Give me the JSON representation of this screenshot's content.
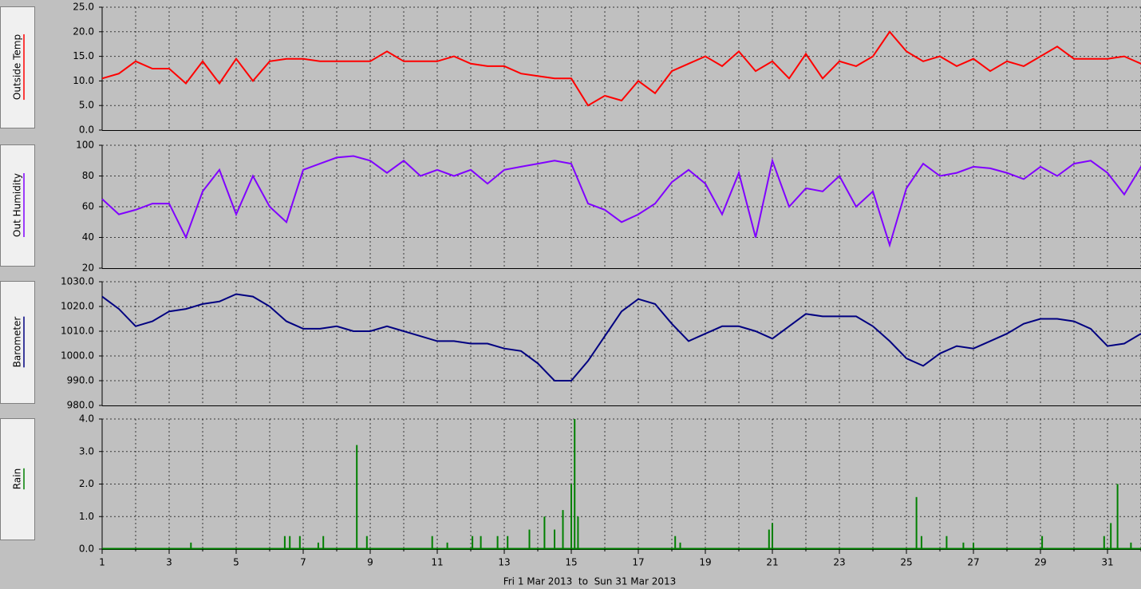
{
  "chart_data": [
    {
      "type": "line",
      "ylabel": "Outside Temp",
      "color": "#ff0000",
      "xlim": [
        1,
        32
      ],
      "ylim": [
        0,
        25
      ],
      "grid": true,
      "yticks": [
        {
          "value": 0,
          "label": "0.0"
        },
        {
          "value": 5,
          "label": "5.0"
        },
        {
          "value": 10,
          "label": "10.0"
        },
        {
          "value": 15,
          "label": "15.0"
        },
        {
          "value": 20,
          "label": "20.0"
        },
        {
          "value": 25,
          "label": "25.0"
        }
      ],
      "x": [
        1,
        1.5,
        2,
        2.5,
        3,
        3.5,
        4,
        4.5,
        5,
        5.5,
        6,
        6.5,
        7,
        7.5,
        8,
        8.5,
        9,
        9.5,
        10,
        10.5,
        11,
        11.5,
        12,
        12.5,
        13,
        13.5,
        14,
        14.5,
        15,
        15.5,
        16,
        16.5,
        17,
        17.5,
        18,
        18.5,
        19,
        19.5,
        20,
        20.5,
        21,
        21.5,
        22,
        22.5,
        23,
        23.5,
        24,
        24.5,
        25,
        25.5,
        26,
        26.5,
        27,
        27.5,
        28,
        28.5,
        29,
        29.5,
        30,
        30.5,
        31,
        31.5,
        32
      ],
      "values": [
        10.5,
        11.5,
        14,
        12.5,
        12.5,
        9.5,
        14,
        9.5,
        14.5,
        10,
        14,
        14.5,
        14.5,
        14,
        14,
        14,
        14,
        16,
        14,
        14,
        14,
        15,
        13.5,
        13,
        13,
        11.5,
        11,
        10.5,
        10.5,
        5,
        7,
        6,
        10,
        7.5,
        12,
        13.5,
        15,
        13,
        16,
        12,
        14,
        10.5,
        15.5,
        10.5,
        14,
        13,
        15,
        20,
        16,
        14,
        15,
        13,
        14.5,
        12,
        14,
        13,
        15,
        17,
        14.5,
        14.5,
        14.5,
        15,
        13.5
      ]
    },
    {
      "type": "line",
      "ylabel": "Out Humidity",
      "color": "#8000ff",
      "xlim": [
        1,
        32
      ],
      "ylim": [
        20,
        100
      ],
      "grid": true,
      "yticks": [
        20,
        40,
        60,
        80,
        100
      ],
      "x": [
        1,
        1.5,
        2,
        2.5,
        3,
        3.5,
        4,
        4.5,
        5,
        5.5,
        6,
        6.5,
        7,
        7.5,
        8,
        8.5,
        9,
        9.5,
        10,
        10.5,
        11,
        11.5,
        12,
        12.5,
        13,
        13.5,
        14,
        14.5,
        15,
        15.5,
        16,
        16.5,
        17,
        17.5,
        18,
        18.5,
        19,
        19.5,
        20,
        20.5,
        21,
        21.5,
        22,
        22.5,
        23,
        23.5,
        24,
        24.5,
        25,
        25.5,
        26,
        26.5,
        27,
        27.5,
        28,
        28.5,
        29,
        29.5,
        30,
        30.5,
        31,
        31.5,
        32
      ],
      "values": [
        65,
        55,
        58,
        62,
        62,
        40,
        70,
        84,
        55,
        80,
        60,
        50,
        84,
        88,
        92,
        93,
        90,
        82,
        90,
        80,
        84,
        80,
        84,
        75,
        84,
        86,
        88,
        90,
        88,
        62,
        58,
        50,
        55,
        62,
        76,
        84,
        75,
        55,
        82,
        40,
        90,
        60,
        72,
        70,
        80,
        60,
        70,
        35,
        72,
        88,
        80,
        82,
        86,
        85,
        82,
        78,
        86,
        80,
        88,
        90,
        82,
        68,
        86
      ]
    },
    {
      "type": "line",
      "ylabel": "Barometer",
      "color": "#000080",
      "xlim": [
        1,
        32
      ],
      "ylim": [
        980,
        1030
      ],
      "grid": true,
      "yticks": [
        {
          "value": 980,
          "label": "980.0"
        },
        {
          "value": 990,
          "label": "990.0"
        },
        {
          "value": 1000,
          "label": "1000.0"
        },
        {
          "value": 1010,
          "label": "1010.0"
        },
        {
          "value": 1020,
          "label": "1020.0"
        },
        {
          "value": 1030,
          "label": "1030.0"
        }
      ],
      "x": [
        1,
        1.5,
        2,
        2.5,
        3,
        3.5,
        4,
        4.5,
        5,
        5.5,
        6,
        6.5,
        7,
        7.5,
        8,
        8.5,
        9,
        9.5,
        10,
        10.5,
        11,
        11.5,
        12,
        12.5,
        13,
        13.5,
        14,
        14.5,
        15,
        15.5,
        16,
        16.5,
        17,
        17.5,
        18,
        18.5,
        19,
        19.5,
        20,
        20.5,
        21,
        21.5,
        22,
        22.5,
        23,
        23.5,
        24,
        24.5,
        25,
        25.5,
        26,
        26.5,
        27,
        27.5,
        28,
        28.5,
        29,
        29.5,
        30,
        30.5,
        31,
        31.5,
        32
      ],
      "values": [
        1024,
        1019,
        1012,
        1014,
        1018,
        1019,
        1021,
        1022,
        1025,
        1024,
        1020,
        1014,
        1011,
        1011,
        1012,
        1010,
        1010,
        1012,
        1010,
        1008,
        1006,
        1006,
        1005,
        1005,
        1003,
        1002,
        997,
        990,
        990,
        998,
        1008,
        1018,
        1023,
        1021,
        1013,
        1006,
        1009,
        1012,
        1012,
        1010,
        1007,
        1012,
        1017,
        1016,
        1016,
        1016,
        1012,
        1006,
        999,
        996,
        1001,
        1004,
        1003,
        1006,
        1009,
        1013,
        1015,
        1015,
        1014,
        1011,
        1004,
        1005,
        1009
      ]
    },
    {
      "type": "bar",
      "ylabel": "Rain",
      "color": "#008000",
      "xlim": [
        1,
        32
      ],
      "ylim": [
        0,
        4
      ],
      "grid": true,
      "yticks": [
        {
          "value": 0,
          "label": "0.0"
        },
        {
          "value": 1,
          "label": "1.0"
        },
        {
          "value": 2,
          "label": "2.0"
        },
        {
          "value": 3,
          "label": "3.0"
        },
        {
          "value": 4,
          "label": "4.0"
        }
      ],
      "xticks": [
        1,
        3,
        5,
        7,
        9,
        11,
        13,
        15,
        17,
        19,
        21,
        23,
        25,
        27,
        29,
        31
      ],
      "xminorticks": [
        2,
        4,
        6,
        8,
        10,
        12,
        14,
        16,
        18,
        20,
        22,
        24,
        26,
        28,
        30,
        32
      ],
      "xlabel": "Fri 1 Mar 2013  to  Sun 31 Mar 2013",
      "x": [
        3.65,
        6.45,
        6.6,
        6.9,
        7.45,
        7.6,
        8.6,
        8.9,
        10.85,
        11.3,
        12.05,
        12.3,
        12.8,
        13.1,
        13.75,
        14.2,
        14.5,
        14.75,
        15.0,
        15.1,
        15.2,
        18.1,
        18.25,
        20.9,
        21.0,
        25.3,
        25.45,
        26.2,
        26.7,
        27.0,
        29.05,
        30.9,
        31.1,
        31.3,
        31.7
      ],
      "values": [
        0.2,
        0.4,
        0.4,
        0.4,
        0.2,
        0.4,
        3.2,
        0.4,
        0.4,
        0.2,
        0.4,
        0.4,
        0.4,
        0.4,
        0.6,
        1.0,
        0.6,
        1.2,
        2.0,
        4.0,
        1.0,
        0.4,
        0.2,
        0.6,
        0.8,
        1.6,
        0.4,
        0.4,
        0.2,
        0.2,
        0.4,
        0.4,
        0.8,
        2.0,
        0.2
      ]
    }
  ]
}
